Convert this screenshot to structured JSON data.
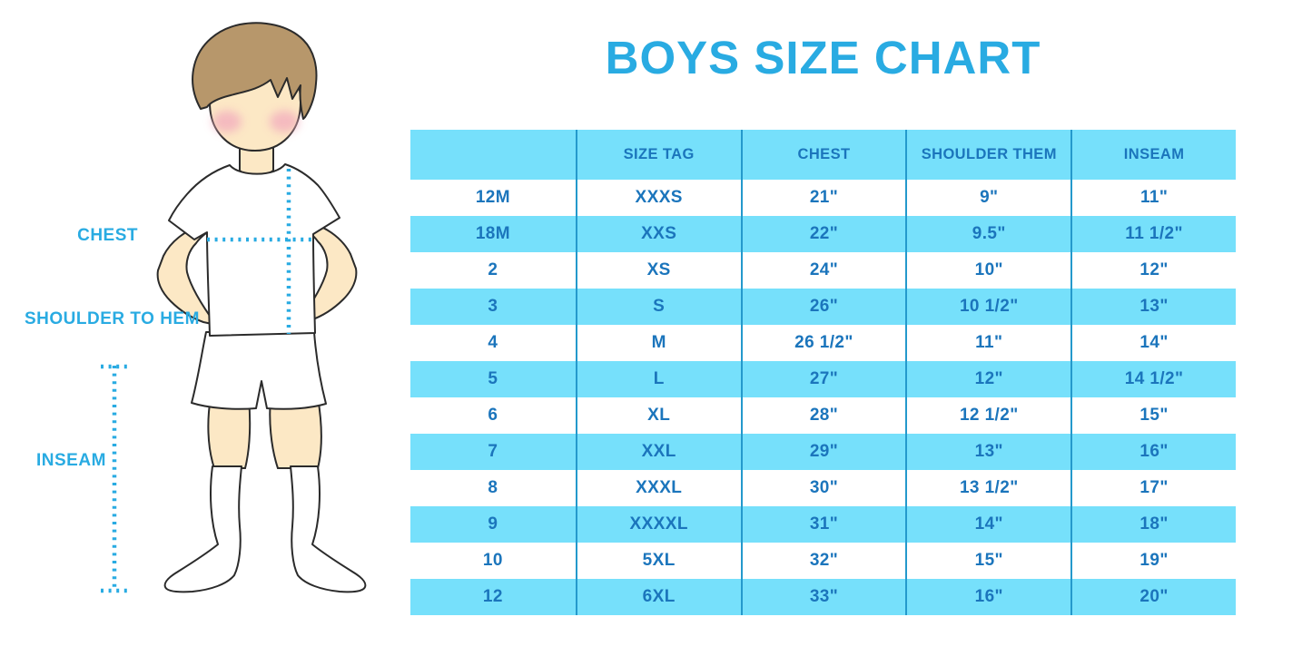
{
  "title": "BOYS SIZE CHART",
  "figure": {
    "labels": {
      "chest": "CHEST",
      "shoulder_to_hem": "SHOULDER TO HEM",
      "inseam": "INSEAM"
    }
  },
  "chart_data": {
    "type": "table",
    "title": "BOYS SIZE CHART",
    "columns": [
      "",
      "SIZE TAG",
      "CHEST",
      "SHOULDER THEM",
      "INSEAM"
    ],
    "rows": [
      [
        "12M",
        "XXXS",
        "21\"",
        "9\"",
        "11\""
      ],
      [
        "18M",
        "XXS",
        "22\"",
        "9.5\"",
        "11 1/2\""
      ],
      [
        "2",
        "XS",
        "24\"",
        "10\"",
        "12\""
      ],
      [
        "3",
        "S",
        "26\"",
        "10 1/2\"",
        "13\""
      ],
      [
        "4",
        "M",
        "26 1/2\"",
        "11\"",
        "14\""
      ],
      [
        "5",
        "L",
        "27\"",
        "12\"",
        "14 1/2\""
      ],
      [
        "6",
        "XL",
        "28\"",
        "12 1/2\"",
        "15\""
      ],
      [
        "7",
        "XXL",
        "29\"",
        "13\"",
        "16\""
      ],
      [
        "8",
        "XXXL",
        "30\"",
        "13 1/2\"",
        "17\""
      ],
      [
        "9",
        "XXXXL",
        "31\"",
        "14\"",
        "18\""
      ],
      [
        "10",
        "5XL",
        "32\"",
        "15\"",
        "19\""
      ],
      [
        "12",
        "6XL",
        "33\"",
        "16\"",
        "20\""
      ]
    ],
    "layout": {
      "header_background": "#76E0FB",
      "stripe_background": "#76E0FB",
      "grid_lines": "vertical-only",
      "stripe_pattern": "even rows light blue starting with 18M"
    }
  },
  "colors": {
    "title_blue": "#29ABE2",
    "label_blue": "#29ABE2",
    "table_text_blue": "#1B75BC",
    "band_light_blue": "#76E0FB",
    "grid_line_blue": "#2499CC",
    "skin": "#FCE8C5",
    "hair_brown": "#B7976B",
    "cheek_pink": "#F3AFBE"
  }
}
